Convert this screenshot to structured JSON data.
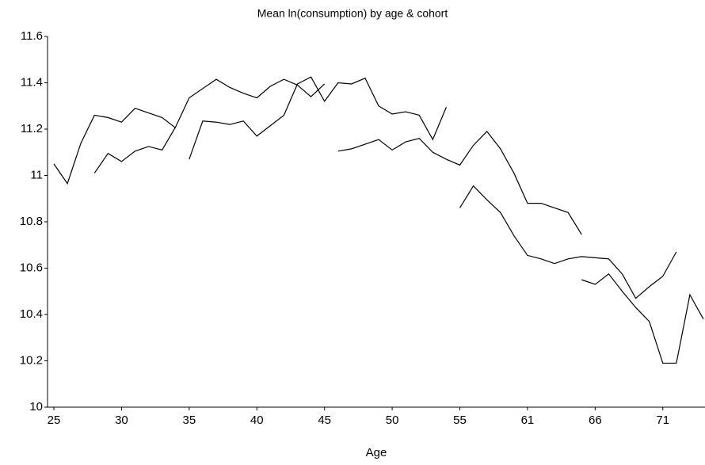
{
  "chart_data": {
    "type": "line",
    "title": "Mean ln(consumption) by age & cohort",
    "x_label": "Age",
    "categories": [
      "25",
      null,
      null,
      null,
      null,
      "30",
      null,
      null,
      null,
      null,
      "35",
      null,
      null,
      null,
      null,
      "40",
      null,
      null,
      null,
      null,
      "45",
      null,
      null,
      null,
      null,
      "50",
      null,
      null,
      null,
      null,
      "55",
      null,
      null,
      null,
      null,
      "61",
      null,
      null,
      null,
      null,
      "66",
      null,
      null,
      null,
      null,
      "71",
      null,
      null,
      null
    ],
    "ylim": [
      10,
      11.6
    ],
    "yticks": [
      10,
      10.2,
      10.4,
      10.6,
      10.8,
      11,
      11.2,
      11.4,
      11.6
    ],
    "grid": false,
    "series": [
      {
        "color": "#000000",
        "values": [
          11.05,
          10.965,
          11.14,
          11.26,
          11.25,
          11.23,
          11.29,
          11.27,
          11.25,
          11.205,
          null,
          null,
          null,
          null,
          null,
          null,
          null,
          null,
          null,
          null,
          null,
          null,
          null,
          null,
          null,
          null,
          null,
          null,
          null,
          null,
          null,
          null,
          null,
          null,
          null,
          null,
          null,
          null,
          null,
          null,
          null,
          null,
          null,
          null,
          null,
          null,
          null,
          null,
          null
        ]
      },
      {
        "color": "#000000",
        "values": [
          null,
          null,
          null,
          11.01,
          11.095,
          11.06,
          11.105,
          11.125,
          11.11,
          11.21,
          11.335,
          11.375,
          11.415,
          11.38,
          11.355,
          11.335,
          11.385,
          11.415,
          11.39,
          11.34,
          11.395,
          null,
          null,
          null,
          null,
          null,
          null,
          null,
          null,
          null,
          null,
          null,
          null,
          null,
          null,
          null,
          null,
          null,
          null,
          null,
          null,
          null,
          null,
          null,
          null,
          null,
          null,
          null,
          null
        ]
      },
      {
        "color": "#000000",
        "values": [
          null,
          null,
          null,
          null,
          null,
          null,
          null,
          null,
          null,
          null,
          11.07,
          11.235,
          11.23,
          11.22,
          11.235,
          11.17,
          11.215,
          11.26,
          11.395,
          11.425,
          11.32,
          11.4,
          11.395,
          11.42,
          11.3,
          11.265,
          11.275,
          11.26,
          11.155,
          11.295,
          null,
          null,
          null,
          null,
          null,
          null,
          null,
          null,
          null,
          null,
          null,
          null,
          null,
          null,
          null,
          null,
          null,
          null,
          null
        ]
      },
      {
        "color": "#000000",
        "values": [
          null,
          null,
          null,
          null,
          null,
          null,
          null,
          null,
          null,
          null,
          null,
          null,
          null,
          null,
          null,
          null,
          null,
          null,
          null,
          null,
          null,
          11.105,
          11.115,
          11.135,
          11.155,
          11.11,
          11.145,
          11.16,
          11.1,
          11.07,
          11.045,
          11.13,
          11.19,
          11.115,
          11.01,
          10.88,
          10.88,
          10.86,
          10.84,
          10.745,
          null,
          null,
          null,
          null,
          null,
          null,
          null,
          null,
          null
        ]
      },
      {
        "color": "#000000",
        "values": [
          null,
          null,
          null,
          null,
          null,
          null,
          null,
          null,
          null,
          null,
          null,
          null,
          null,
          null,
          null,
          null,
          null,
          null,
          null,
          null,
          null,
          null,
          null,
          null,
          null,
          null,
          null,
          null,
          null,
          null,
          10.86,
          10.955,
          10.895,
          10.84,
          10.74,
          10.655,
          10.64,
          10.62,
          10.64,
          10.65,
          10.645,
          10.64,
          10.575,
          10.47,
          10.52,
          10.565,
          10.67,
          null,
          null
        ]
      },
      {
        "color": "#000000",
        "values": [
          null,
          null,
          null,
          null,
          null,
          null,
          null,
          null,
          null,
          null,
          null,
          null,
          null,
          null,
          null,
          null,
          null,
          null,
          null,
          null,
          null,
          null,
          null,
          null,
          null,
          null,
          null,
          null,
          null,
          null,
          null,
          null,
          null,
          null,
          null,
          null,
          null,
          null,
          null,
          10.55,
          10.53,
          10.575,
          10.5,
          10.43,
          10.37,
          10.19,
          10.19,
          10.485,
          10.38
        ]
      }
    ]
  }
}
